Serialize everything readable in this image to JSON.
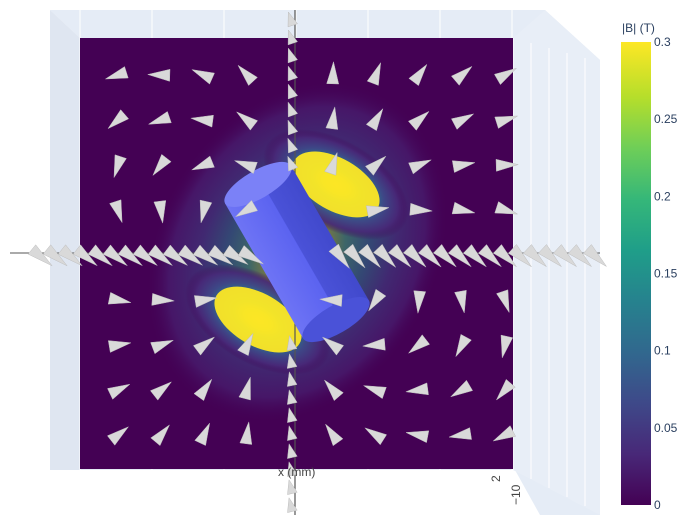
{
  "chart_data": {
    "type": "heatmap",
    "title": "",
    "colorbar": {
      "title": "|B| (T)",
      "range": [
        0,
        0.3
      ],
      "ticks": [
        0,
        0.05,
        0.1,
        0.15,
        0.2,
        0.25,
        0.3
      ],
      "tick_labels": [
        "0",
        "0.05",
        "0.1",
        "0.15",
        "0.2",
        "0.25",
        "0.3"
      ],
      "colorscale": "Viridis",
      "colors": [
        "#440154",
        "#482878",
        "#3e4989",
        "#31688e",
        "#26828e",
        "#1f9e89",
        "#35b779",
        "#6ece58",
        "#b5de2b",
        "#fde725"
      ]
    },
    "x_axis_label": "x (mm)",
    "y_tick_label": "−10",
    "z_tick_label": "2",
    "field_max": 0.3,
    "magnet": {
      "color": "#5b63f0",
      "shape": "cylinder",
      "tilt_deg": 30
    },
    "arrow_color": "#d9d9d9",
    "scene_background": "#e5ecf6",
    "grid_color": "#ffffff"
  }
}
